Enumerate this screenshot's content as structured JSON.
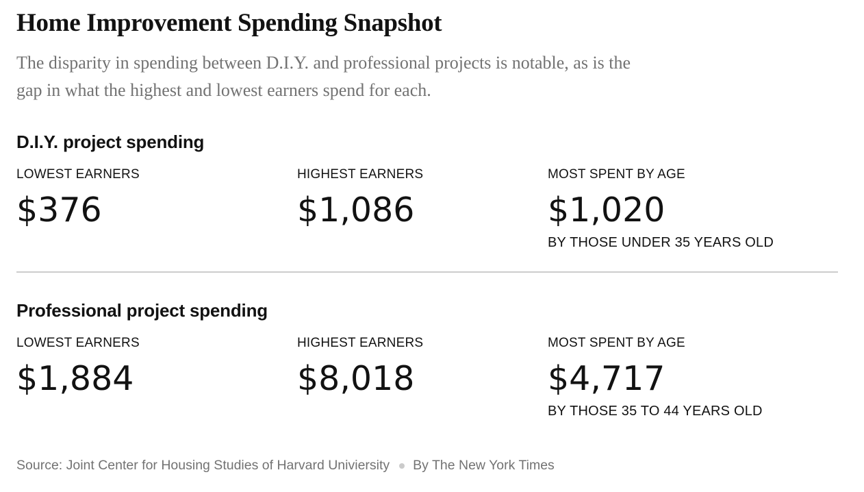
{
  "page": {
    "title": "Home Improvement Spending Snapshot",
    "subtitle_line1": "The disparity in spending between D.I.Y. and professional projects is notable, as is the",
    "subtitle_line2": "gap in what the highest and lowest earners spend for each."
  },
  "sections": [
    {
      "heading": "D.I.Y. project spending",
      "stats": [
        {
          "label": "LOWEST EARNERS",
          "value": "$376"
        },
        {
          "label": "HIGHEST EARNERS",
          "value": "$1,086"
        },
        {
          "label": "MOST SPENT BY AGE",
          "value": "$1,020",
          "caption": "BY THOSE UNDER 35 YEARS OLD"
        }
      ]
    },
    {
      "heading": "Professional project spending",
      "stats": [
        {
          "label": "LOWEST EARNERS",
          "value": "$1,884"
        },
        {
          "label": "HIGHEST EARNERS",
          "value": "$8,018"
        },
        {
          "label": "MOST SPENT BY AGE",
          "value": "$4,717",
          "caption": "BY THOSE 35 TO 44 YEARS OLD"
        }
      ]
    }
  ],
  "footer": {
    "source": "Source: Joint Center for Housing Studies of Harvard Univiersity",
    "byline": "By The New York Times"
  },
  "colors": {
    "text_primary": "#121212",
    "text_secondary": "#727272",
    "divider": "#cccccc",
    "background": "#ffffff"
  },
  "chart_data": {
    "type": "table",
    "title": "Home Improvement Spending Snapshot",
    "subtitle": "The disparity in spending between D.I.Y. and professional projects is notable, as is the gap in what the highest and lowest earners spend for each.",
    "columns": [
      "LOWEST EARNERS",
      "HIGHEST EARNERS",
      "MOST SPENT BY AGE"
    ],
    "rows": [
      {
        "category": "D.I.Y. project spending",
        "lowest_earners_usd": 376,
        "highest_earners_usd": 1086,
        "most_spent_by_age_usd": 1020,
        "most_spent_by_age_group": "under 35 years old"
      },
      {
        "category": "Professional project spending",
        "lowest_earners_usd": 1884,
        "highest_earners_usd": 8018,
        "most_spent_by_age_usd": 4717,
        "most_spent_by_age_group": "35 to 44 years old"
      }
    ],
    "source": "Joint Center for Housing Studies of Harvard Univiersity",
    "byline": "By The New York Times"
  }
}
